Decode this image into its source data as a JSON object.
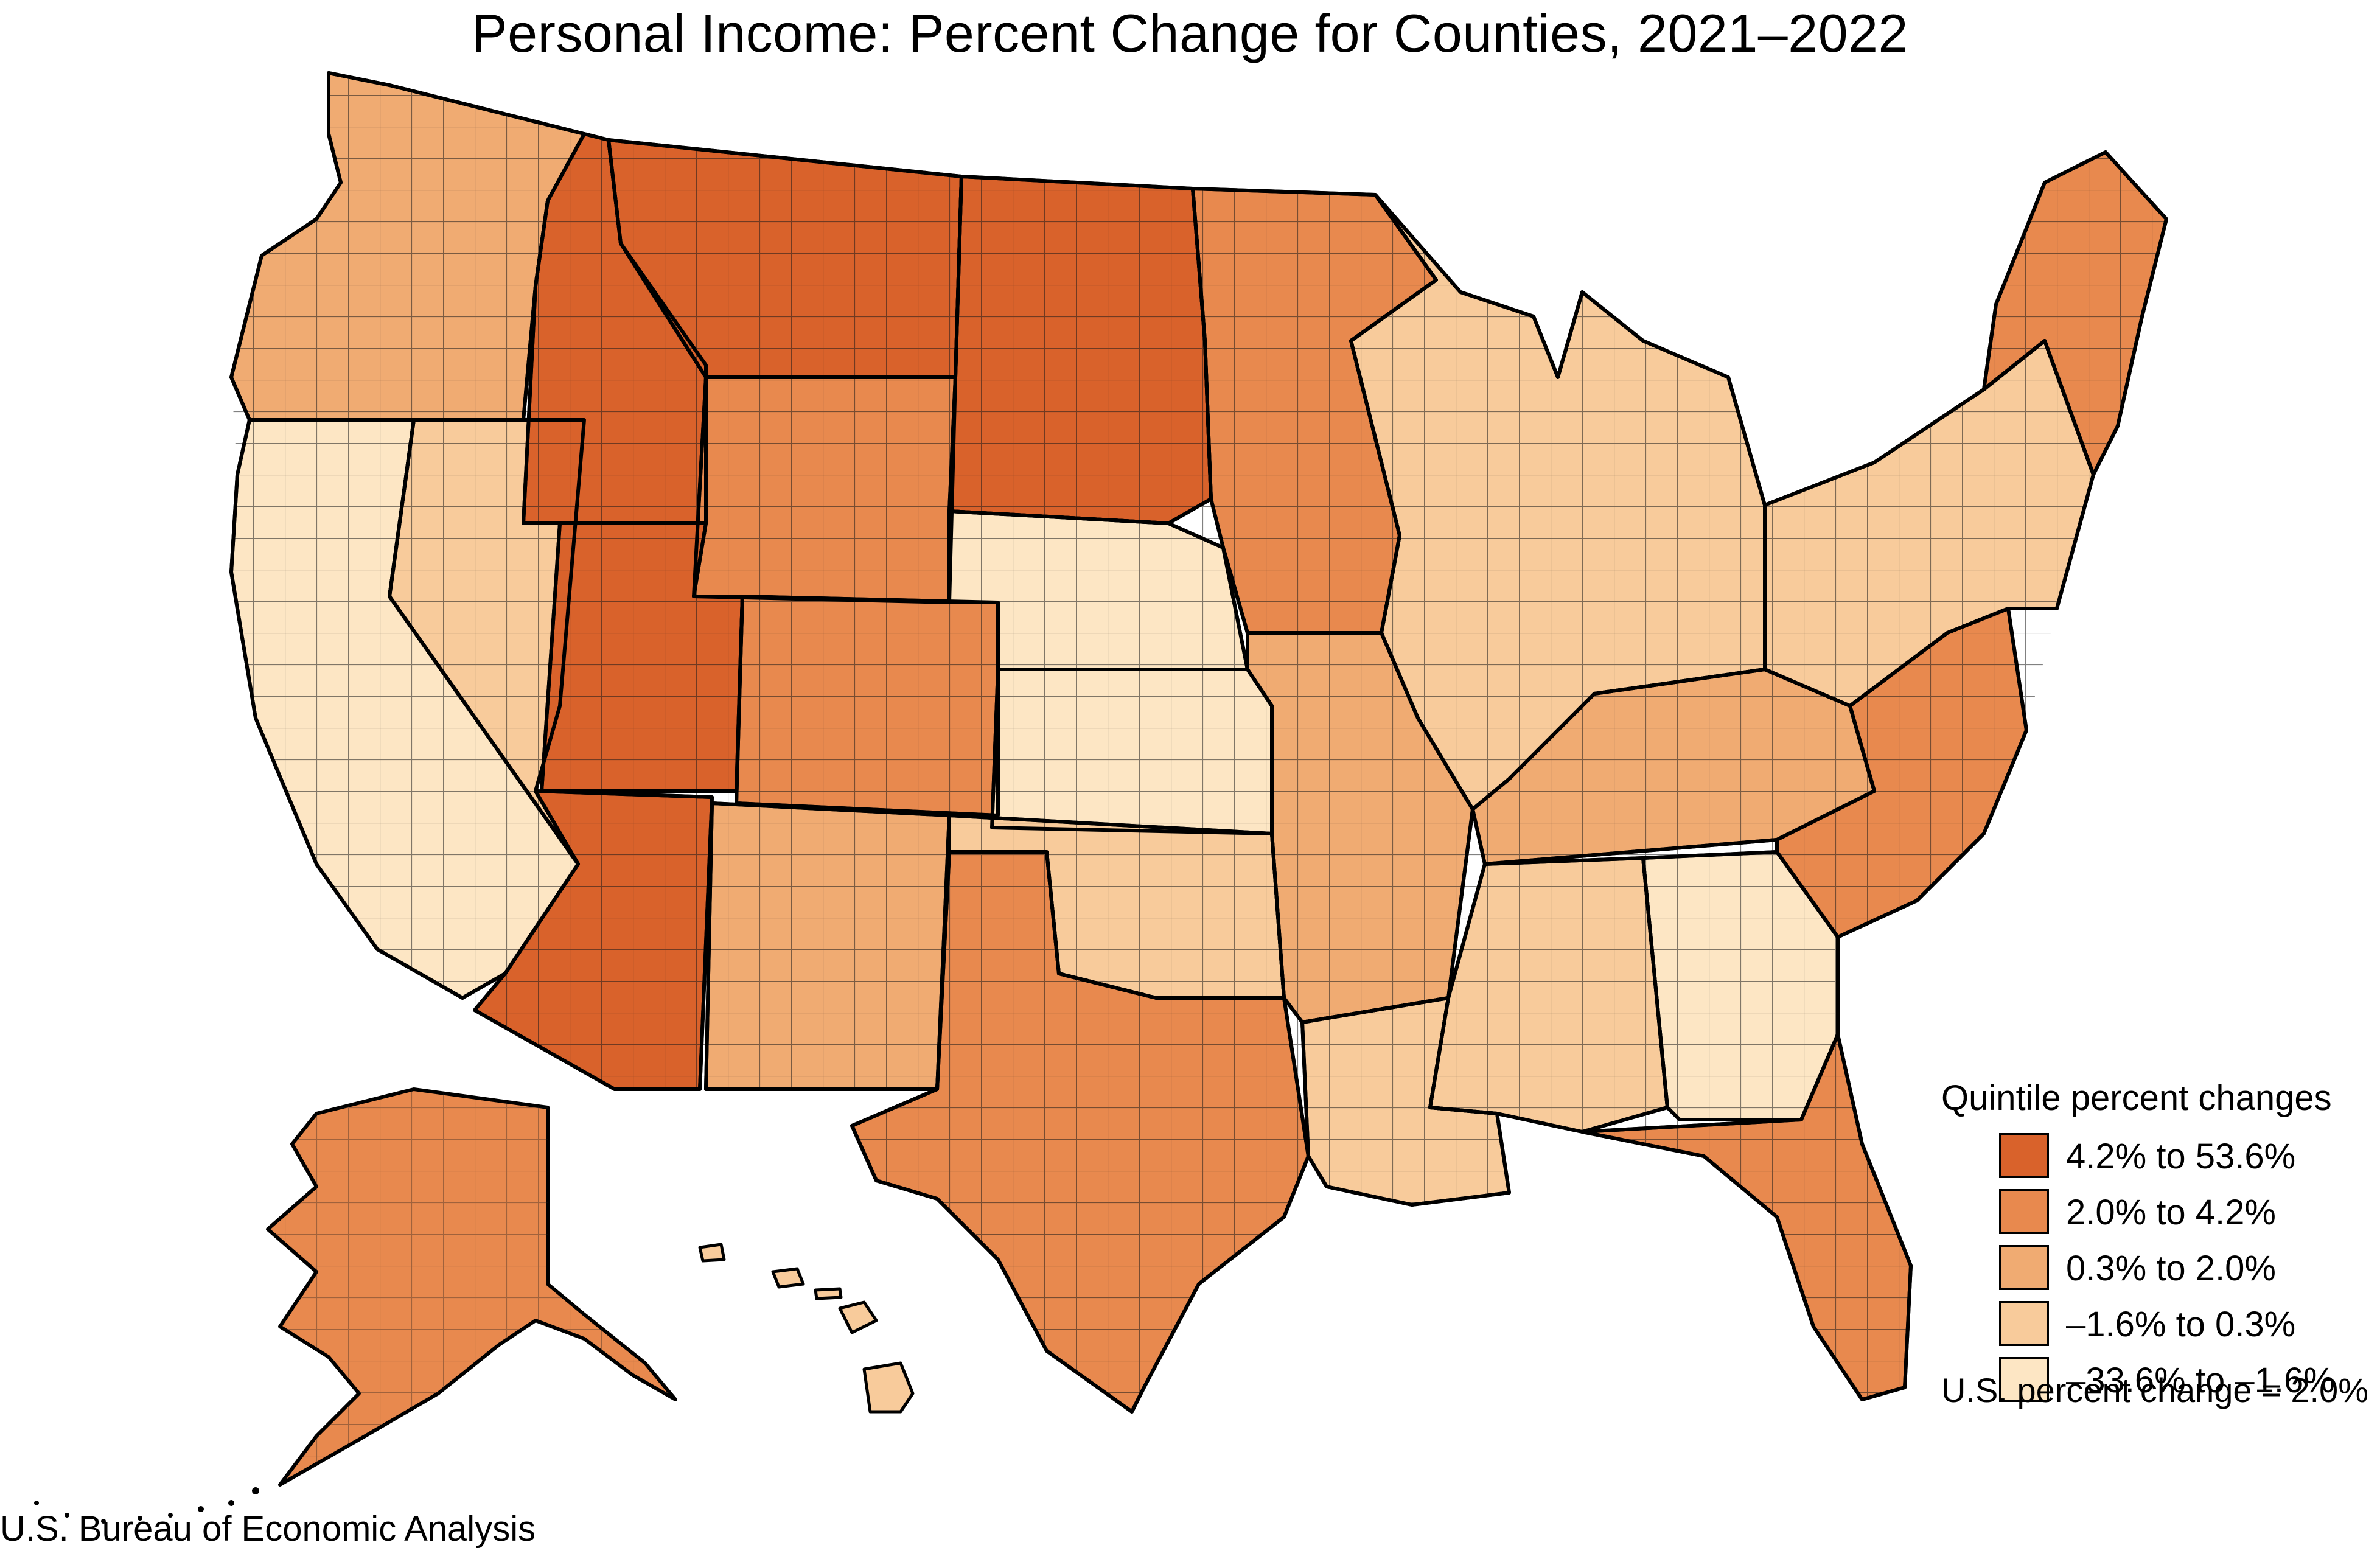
{
  "title": "Personal Income: Percent Change for Counties, 2021–2022",
  "legend": {
    "title": "Quintile percent changes",
    "items": [
      {
        "label": "4.2% to 53.6%",
        "color": "#d9622b"
      },
      {
        "label": "2.0% to 4.2%",
        "color": "#e8894e"
      },
      {
        "label": "0.3% to 2.0%",
        "color": "#f0ab72"
      },
      {
        "label": "–1.6% to 0.3%",
        "color": "#f8cb9b"
      },
      {
        "label": "–33.6% to –1.6%",
        "color": "#fde6c4"
      }
    ]
  },
  "us_change": "U.S. percent change = 2.0%",
  "source": "U.S. Bureau of Economic Analysis",
  "regions": [
    {
      "name": "Pacific Northwest",
      "bin": 2
    },
    {
      "name": "California",
      "bin": 4
    },
    {
      "name": "Nevada",
      "bin": 3
    },
    {
      "name": "Idaho",
      "bin": 0
    },
    {
      "name": "Montana",
      "bin": 0
    },
    {
      "name": "Wyoming",
      "bin": 1
    },
    {
      "name": "Utah",
      "bin": 0
    },
    {
      "name": "Colorado",
      "bin": 1
    },
    {
      "name": "Arizona",
      "bin": 0
    },
    {
      "name": "New Mexico",
      "bin": 2
    },
    {
      "name": "Dakotas",
      "bin": 0
    },
    {
      "name": "Nebraska",
      "bin": 4
    },
    {
      "name": "Kansas",
      "bin": 4
    },
    {
      "name": "Oklahoma",
      "bin": 3
    },
    {
      "name": "Texas",
      "bin": 1
    },
    {
      "name": "Minnesota and Iowa",
      "bin": 1
    },
    {
      "name": "Missouri and Arkansas",
      "bin": 2
    },
    {
      "name": "Louisiana",
      "bin": 3
    },
    {
      "name": "Great Lakes",
      "bin": 3
    },
    {
      "name": "Kentucky and Tennessee",
      "bin": 2
    },
    {
      "name": "Deep South",
      "bin": 3
    },
    {
      "name": "Georgia",
      "bin": 4
    },
    {
      "name": "Carolinas and Virginia",
      "bin": 1
    },
    {
      "name": "Florida",
      "bin": 1
    },
    {
      "name": "Mid-Atlantic",
      "bin": 3
    },
    {
      "name": "New England",
      "bin": 1
    },
    {
      "name": "Alaska",
      "bin": 1
    },
    {
      "name": "Hawaii",
      "bin": 3
    }
  ]
}
